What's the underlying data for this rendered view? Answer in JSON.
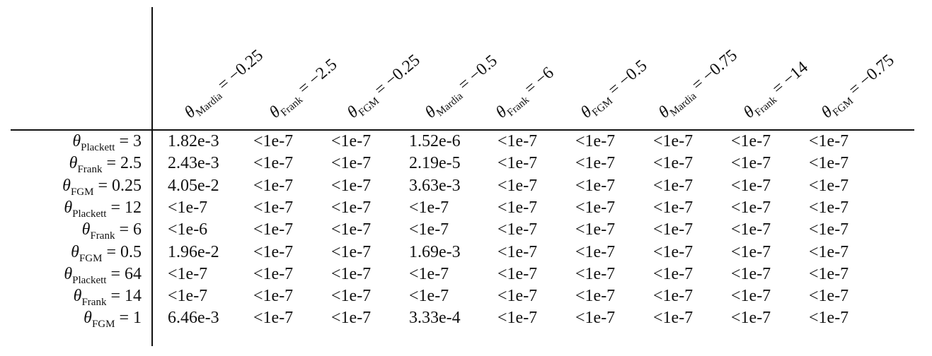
{
  "table": {
    "columns": [
      {
        "symbol": "θ",
        "sub": "Mardia",
        "eq": "= −0.25"
      },
      {
        "symbol": "θ",
        "sub": "Frank",
        "eq": "= −2.5"
      },
      {
        "symbol": "θ",
        "sub": "FGM",
        "eq": "= −0.25"
      },
      {
        "symbol": "θ",
        "sub": "Mardia",
        "eq": "= −0.5"
      },
      {
        "symbol": "θ",
        "sub": "Frank",
        "eq": "= −6"
      },
      {
        "symbol": "θ",
        "sub": "FGM",
        "eq": "= −0.5"
      },
      {
        "symbol": "θ",
        "sub": "Mardia",
        "eq": "= −0.75"
      },
      {
        "symbol": "θ",
        "sub": "Frank",
        "eq": "= −14"
      },
      {
        "symbol": "θ",
        "sub": "FGM",
        "eq": "= −0.75"
      }
    ],
    "rows": [
      {
        "symbol": "θ",
        "sub": "Plackett",
        "eq": "= 3",
        "cells": [
          "1.82e-3",
          "<1e-7",
          "<1e-7",
          "1.52e-6",
          "<1e-7",
          "<1e-7",
          "<1e-7",
          "<1e-7",
          "<1e-7"
        ]
      },
      {
        "symbol": "θ",
        "sub": "Frank",
        "eq": "= 2.5",
        "cells": [
          "2.43e-3",
          "<1e-7",
          "<1e-7",
          "2.19e-5",
          "<1e-7",
          "<1e-7",
          "<1e-7",
          "<1e-7",
          "<1e-7"
        ]
      },
      {
        "symbol": "θ",
        "sub": "FGM",
        "eq": "= 0.25",
        "cells": [
          "4.05e-2",
          "<1e-7",
          "<1e-7",
          "3.63e-3",
          "<1e-7",
          "<1e-7",
          "<1e-7",
          "<1e-7",
          "<1e-7"
        ]
      },
      {
        "symbol": "θ",
        "sub": "Plackett",
        "eq": "= 12",
        "cells": [
          "<1e-7",
          "<1e-7",
          "<1e-7",
          "<1e-7",
          "<1e-7",
          "<1e-7",
          "<1e-7",
          "<1e-7",
          "<1e-7"
        ]
      },
      {
        "symbol": "θ",
        "sub": "Frank",
        "eq": "= 6",
        "cells": [
          "<1e-6",
          "<1e-7",
          "<1e-7",
          "<1e-7",
          "<1e-7",
          "<1e-7",
          "<1e-7",
          "<1e-7",
          "<1e-7"
        ]
      },
      {
        "symbol": "θ",
        "sub": "FGM",
        "eq": "= 0.5",
        "cells": [
          "1.96e-2",
          "<1e-7",
          "<1e-7",
          "1.69e-3",
          "<1e-7",
          "<1e-7",
          "<1e-7",
          "<1e-7",
          "<1e-7"
        ]
      },
      {
        "symbol": "θ",
        "sub": "Plackett",
        "eq": "= 64",
        "cells": [
          "<1e-7",
          "<1e-7",
          "<1e-7",
          "<1e-7",
          "<1e-7",
          "<1e-7",
          "<1e-7",
          "<1e-7",
          "<1e-7"
        ]
      },
      {
        "symbol": "θ",
        "sub": "Frank",
        "eq": "= 14",
        "cells": [
          "<1e-7",
          "<1e-7",
          "<1e-7",
          "<1e-7",
          "<1e-7",
          "<1e-7",
          "<1e-7",
          "<1e-7",
          "<1e-7"
        ]
      },
      {
        "symbol": "θ",
        "sub": "FGM",
        "eq": "= 1",
        "cells": [
          "6.46e-3",
          "<1e-7",
          "<1e-7",
          "3.33e-4",
          "<1e-7",
          "<1e-7",
          "<1e-7",
          "<1e-7",
          "<1e-7"
        ]
      }
    ]
  }
}
